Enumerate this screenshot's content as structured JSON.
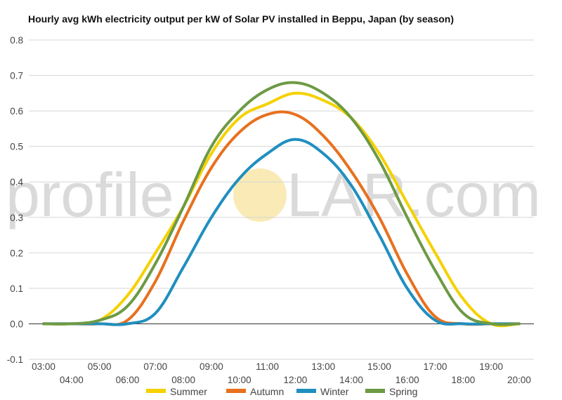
{
  "chart_data": {
    "type": "line",
    "title": "Hourly avg kWh electricity output per kW of Solar PV installed in Beppu, Japan (by season)",
    "xlabel": "",
    "ylabel": "",
    "ylim": [
      -0.1,
      0.8
    ],
    "yticks": [
      -0.1,
      0.0,
      0.1,
      0.2,
      0.3,
      0.4,
      0.5,
      0.6,
      0.7,
      0.8
    ],
    "ytick_labels": [
      "-0.1",
      "0.0",
      "0.1",
      "0.2",
      "0.3",
      "0.4",
      "0.5",
      "0.6",
      "0.7",
      "0.8"
    ],
    "x": [
      "03:00",
      "04:00",
      "05:00",
      "06:00",
      "07:00",
      "08:00",
      "09:00",
      "10:00",
      "11:00",
      "12:00",
      "13:00",
      "14:00",
      "15:00",
      "16:00",
      "17:00",
      "18:00",
      "19:00",
      "20:00"
    ],
    "grid": true,
    "legend_position": "bottom",
    "series": [
      {
        "name": "Summer",
        "color": "#f5d100",
        "values": [
          0.0,
          0.0,
          0.01,
          0.08,
          0.2,
          0.33,
          0.48,
          0.58,
          0.62,
          0.65,
          0.63,
          0.58,
          0.48,
          0.34,
          0.2,
          0.07,
          0.0,
          0.0
        ]
      },
      {
        "name": "Autumn",
        "color": "#e8701e",
        "values": [
          0.0,
          0.0,
          0.0,
          0.01,
          0.12,
          0.29,
          0.44,
          0.54,
          0.59,
          0.59,
          0.53,
          0.43,
          0.3,
          0.14,
          0.02,
          0.0,
          0.0,
          0.0
        ]
      },
      {
        "name": "Winter",
        "color": "#1f8fbf",
        "values": [
          0.0,
          0.0,
          0.0,
          0.0,
          0.03,
          0.16,
          0.3,
          0.41,
          0.48,
          0.52,
          0.48,
          0.39,
          0.25,
          0.1,
          0.01,
          0.0,
          0.0,
          0.0
        ]
      },
      {
        "name": "Spring",
        "color": "#6d9a44",
        "values": [
          0.0,
          0.0,
          0.01,
          0.05,
          0.17,
          0.33,
          0.5,
          0.6,
          0.66,
          0.68,
          0.65,
          0.58,
          0.46,
          0.3,
          0.15,
          0.03,
          0.0,
          0.0
        ]
      }
    ]
  },
  "watermark": {
    "left": "profile",
    "right": "LAR.com",
    "sun_color": "#f7e39e"
  }
}
